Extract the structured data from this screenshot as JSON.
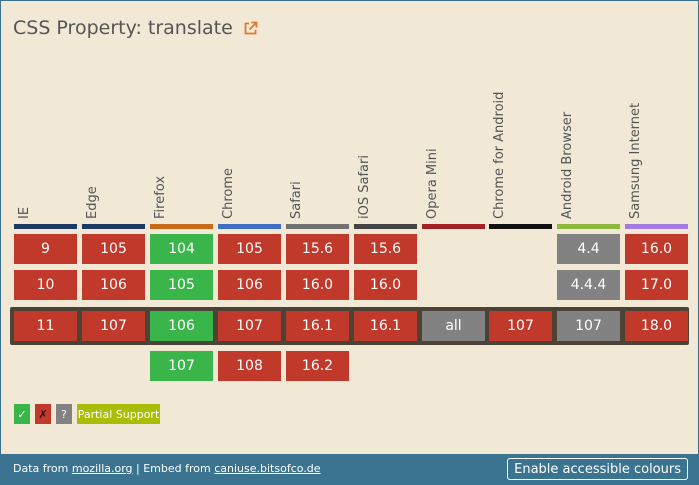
{
  "title": "CSS Property: translate",
  "colors": {
    "yes": "#39b54a",
    "no": "#c0392b",
    "unknown": "#828282",
    "partial": "#a8bd04"
  },
  "browsers": [
    {
      "name": "IE",
      "bar": "#1c3a63"
    },
    {
      "name": "Edge",
      "bar": "#1c3a63"
    },
    {
      "name": "Firefox",
      "bar": "#c96a1b"
    },
    {
      "name": "Chrome",
      "bar": "#3f6ec4"
    },
    {
      "name": "Safari",
      "bar": "#727272"
    },
    {
      "name": "iOS Safari",
      "bar": "#444444"
    },
    {
      "name": "Opera Mini",
      "bar": "#a52022"
    },
    {
      "name": "Chrome for Android",
      "bar": "#111111"
    },
    {
      "name": "Android Browser",
      "bar": "#8db83e"
    },
    {
      "name": "Samsung Internet",
      "bar": "#a37be0"
    }
  ],
  "rows": [
    [
      {
        "v": "9",
        "s": "no"
      },
      {
        "v": "105",
        "s": "no"
      },
      {
        "v": "104",
        "s": "yes"
      },
      {
        "v": "105",
        "s": "no"
      },
      {
        "v": "15.6",
        "s": "no"
      },
      {
        "v": "15.6",
        "s": "no"
      },
      null,
      null,
      {
        "v": "4.4",
        "s": "unknown"
      },
      {
        "v": "16.0",
        "s": "no"
      }
    ],
    [
      {
        "v": "10",
        "s": "no"
      },
      {
        "v": "106",
        "s": "no"
      },
      {
        "v": "105",
        "s": "yes"
      },
      {
        "v": "106",
        "s": "no"
      },
      {
        "v": "16.0",
        "s": "no"
      },
      {
        "v": "16.0",
        "s": "no"
      },
      null,
      null,
      {
        "v": "4.4.4",
        "s": "unknown"
      },
      {
        "v": "17.0",
        "s": "no"
      }
    ],
    [
      {
        "v": "11",
        "s": "no"
      },
      {
        "v": "107",
        "s": "no"
      },
      {
        "v": "106",
        "s": "yes"
      },
      {
        "v": "107",
        "s": "no"
      },
      {
        "v": "16.1",
        "s": "no"
      },
      {
        "v": "16.1",
        "s": "no"
      },
      {
        "v": "all",
        "s": "unknown"
      },
      {
        "v": "107",
        "s": "no"
      },
      {
        "v": "107",
        "s": "unknown"
      },
      {
        "v": "18.0",
        "s": "no"
      }
    ],
    [
      null,
      null,
      {
        "v": "107",
        "s": "yes"
      },
      {
        "v": "108",
        "s": "no"
      },
      {
        "v": "16.2",
        "s": "no"
      },
      null,
      null,
      null,
      null,
      null
    ]
  ],
  "legend": [
    {
      "label": "✓",
      "s": "yes",
      "name": "legend-supported"
    },
    {
      "label": "✗",
      "s": "no",
      "name": "legend-not-supported"
    },
    {
      "label": "?",
      "s": "unknown",
      "name": "legend-unknown"
    },
    {
      "label": "Partial Support",
      "s": "partial",
      "name": "legend-partial-support"
    }
  ],
  "footer": {
    "data_from": "Data from ",
    "source": "mozilla.org",
    "separator": " | Embed from ",
    "embed": "caniuse.bitsofco.de",
    "button": "Enable accessible colours"
  }
}
